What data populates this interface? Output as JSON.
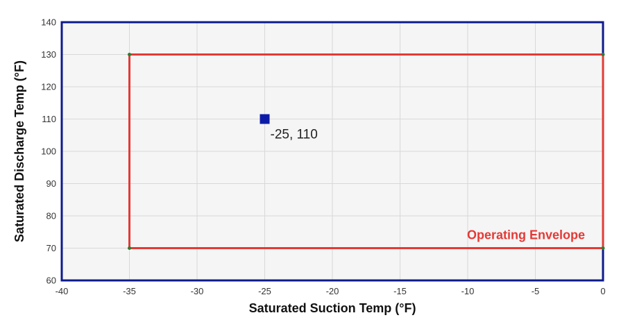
{
  "chart_data": {
    "type": "scatter",
    "xlabel": "Saturated Suction Temp (°F)",
    "ylabel": "Saturated Discharge Temp (°F)",
    "xlim": [
      -40,
      0
    ],
    "ylim": [
      60,
      140
    ],
    "x_ticks": [
      -40,
      -35,
      -30,
      -25,
      -20,
      -15,
      -10,
      -5,
      0
    ],
    "y_ticks": [
      60,
      70,
      80,
      90,
      100,
      110,
      120,
      130,
      140
    ],
    "x_tick_labels": [
      "-40",
      "-35",
      "-30",
      "-25",
      "-20",
      "-15",
      "-10",
      "-5",
      "0"
    ],
    "y_tick_labels": [
      "60",
      "70",
      "80",
      "90",
      "100",
      "110",
      "120",
      "130",
      "140"
    ],
    "grid": true,
    "envelope": {
      "label": "Operating Envelope",
      "color": "#e53935",
      "points": [
        {
          "x": -35,
          "y": 70
        },
        {
          "x": -35,
          "y": 130
        },
        {
          "x": 0,
          "y": 130
        },
        {
          "x": 0,
          "y": 70
        }
      ]
    },
    "point": {
      "x": -25,
      "y": 110,
      "label": "-25, 110",
      "color": "#0d1ca8"
    },
    "colors": {
      "plot_background": "#f5f5f5",
      "plot_border": "#0d1a8c",
      "grid": "#d8d8d8",
      "vertex_marker": "#2e7d32"
    }
  }
}
